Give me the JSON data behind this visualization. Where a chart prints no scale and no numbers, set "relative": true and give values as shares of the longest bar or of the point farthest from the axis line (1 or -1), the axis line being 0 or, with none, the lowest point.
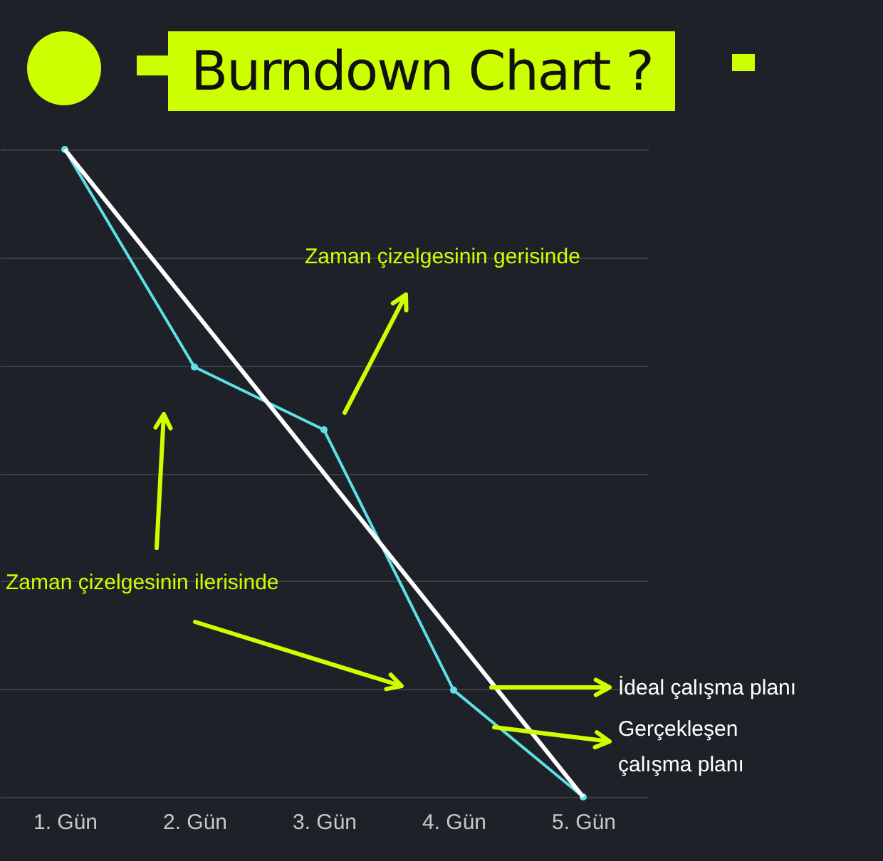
{
  "chart_data": {
    "type": "line",
    "title": "Burndown Chart ?",
    "relative": true,
    "grid": "y",
    "categories": [
      "1. Gün",
      "2. Gün",
      "3. Gün",
      "4. Gün",
      "5. Gün"
    ],
    "series": [
      {
        "name": "Gerçekleşen çalışma planı",
        "color": "#5ce1e6",
        "marker": "circle",
        "values": [
          1,
          0.664,
          0.567,
          0.165,
          0
        ]
      },
      {
        "name": "İdeal çalışma planı",
        "color": "#ffffff",
        "values": [
          1,
          0.75,
          0.5,
          0.25,
          0
        ]
      }
    ],
    "annotations": [
      "Zaman çizelgesinin gerisinde",
      "Zaman çizelgesinin ilerisinde"
    ]
  }
}
